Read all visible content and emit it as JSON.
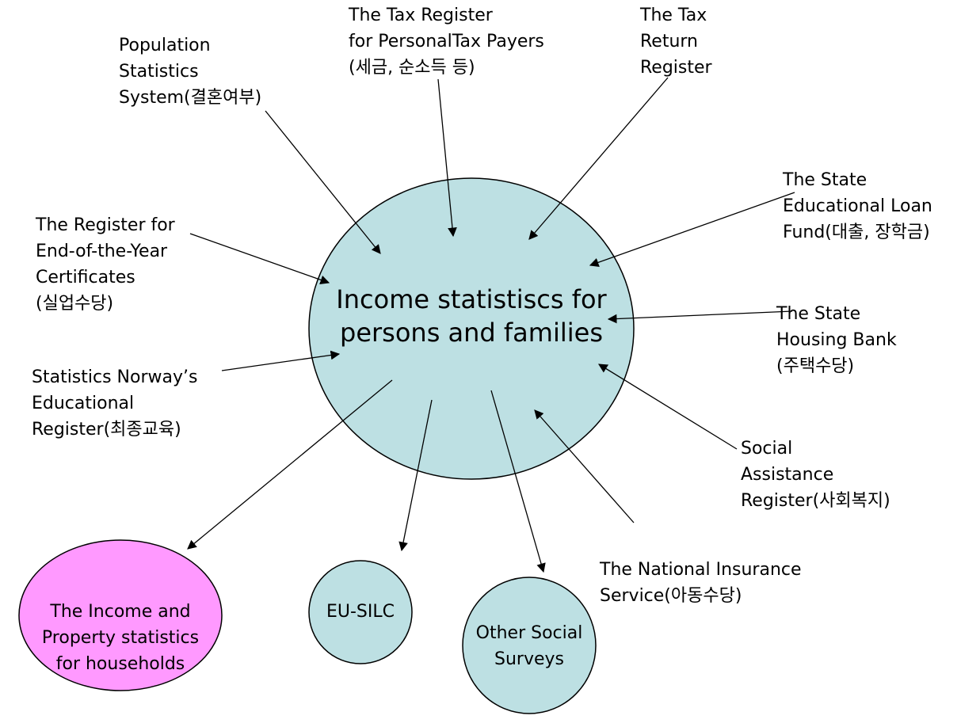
{
  "center": {
    "lines": [
      "Income statistiscs for",
      "persons and families"
    ]
  },
  "sources": [
    {
      "lines": [
        "Population",
        "Statistics",
        "System(결혼여부)"
      ]
    },
    {
      "lines": [
        "The Tax Register",
        "for PersonalTax Payers",
        "(세금, 순소득 등)"
      ]
    },
    {
      "lines": [
        "The Tax",
        "Return",
        "Register"
      ]
    },
    {
      "lines": [
        "The State",
        "Educational Loan",
        "Fund(대출, 장학금)"
      ]
    },
    {
      "lines": [
        "The Register for",
        "End-of-the-Year",
        "Certificates",
        "(실업수당)"
      ]
    },
    {
      "lines": [
        "The State",
        "Housing Bank",
        "(주택수당)"
      ]
    },
    {
      "lines": [
        "Statistics Norway’s",
        "Educational",
        "Register(최종교육)"
      ]
    },
    {
      "lines": [
        "Social",
        "Assistance",
        "Register(사회복지)"
      ]
    },
    {
      "lines": [
        "The National Insurance",
        "Service(아동수당)"
      ]
    }
  ],
  "outputs": [
    {
      "lines": [
        "The Income and",
        "Property statistics",
        "for households"
      ]
    },
    {
      "lines": [
        "EU-SILC"
      ]
    },
    {
      "lines": [
        "Other Social",
        "Surveys"
      ]
    }
  ]
}
